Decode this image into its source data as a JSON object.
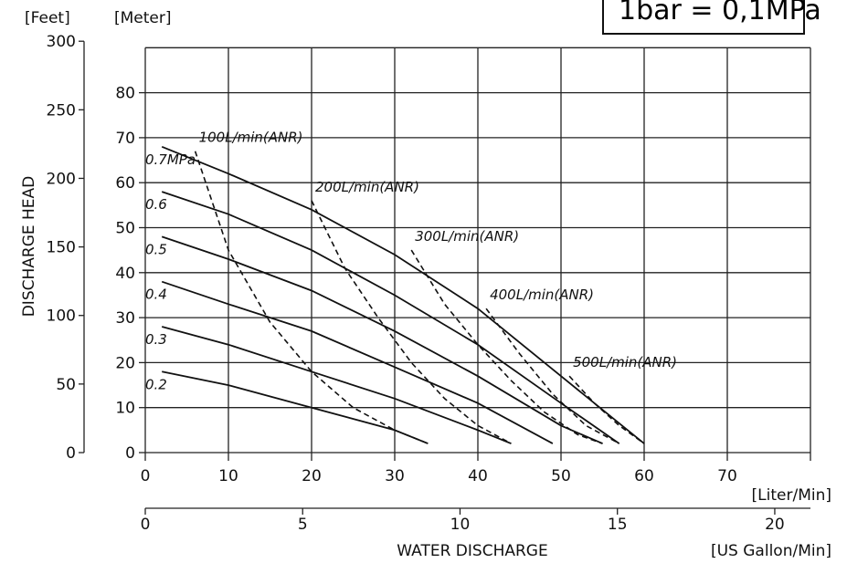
{
  "unit_note": "1bar = 0,1MPa",
  "chart_data": {
    "type": "line",
    "title": "",
    "ylabel": "DISCHARGE HEAD",
    "xlabel": "WATER DISCHARGE",
    "y_left_unit": "[Feet]",
    "y_right_unit": "[Meter]",
    "x_unit_top": "[Liter/Min]",
    "x_unit_bottom": "[US Gallon/Min]",
    "xlim": [
      0,
      80
    ],
    "ylim_meter": [
      0,
      90
    ],
    "x_ticks_liter": [
      "0",
      "10",
      "20",
      "30",
      "40",
      "50",
      "60",
      "70"
    ],
    "x_ticks_gallon": [
      "0",
      "5",
      "10",
      "15",
      "20"
    ],
    "y_ticks_feet": [
      "0",
      "50",
      "100",
      "150",
      "200",
      "250",
      "300"
    ],
    "y_ticks_meter": [
      "0",
      "10",
      "20",
      "30",
      "40",
      "50",
      "60",
      "70",
      "80"
    ],
    "grid": true,
    "pressure_series": [
      {
        "name": "0.7MPa",
        "x": [
          2,
          10,
          20,
          30,
          40,
          50,
          60
        ],
        "y": [
          68,
          62,
          54,
          44,
          32,
          17,
          2
        ]
      },
      {
        "name": "0.6",
        "x": [
          2,
          10,
          20,
          30,
          40,
          50,
          57
        ],
        "y": [
          58,
          53,
          45,
          35,
          24,
          11,
          2
        ]
      },
      {
        "name": "0.5",
        "x": [
          2,
          10,
          20,
          30,
          40,
          50,
          55
        ],
        "y": [
          48,
          43,
          36,
          27,
          17,
          6,
          2
        ]
      },
      {
        "name": "0.4",
        "x": [
          2,
          10,
          20,
          30,
          40,
          49
        ],
        "y": [
          38,
          33,
          27,
          19,
          11,
          2
        ]
      },
      {
        "name": "0.3",
        "x": [
          2,
          10,
          20,
          30,
          40,
          44
        ],
        "y": [
          28,
          24,
          18,
          12,
          5,
          2
        ]
      },
      {
        "name": "0.2",
        "x": [
          2,
          10,
          20,
          30,
          34
        ],
        "y": [
          18,
          15,
          10,
          5,
          2
        ]
      }
    ],
    "air_consumption_series": [
      {
        "name": "100L/min(ANR)",
        "x": [
          6,
          10,
          15,
          20,
          25,
          30,
          34
        ],
        "y": [
          67,
          45,
          29,
          18,
          10,
          5,
          2
        ]
      },
      {
        "name": "200L/min(ANR)",
        "x": [
          20,
          24,
          28,
          32,
          36,
          40,
          44
        ],
        "y": [
          56,
          41,
          30,
          20,
          12,
          6,
          2
        ]
      },
      {
        "name": "300L/min(ANR)",
        "x": [
          32,
          36,
          40,
          44,
          48,
          52,
          55
        ],
        "y": [
          45,
          33,
          24,
          16,
          9,
          4,
          2
        ]
      },
      {
        "name": "400L/min(ANR)",
        "x": [
          41,
          45,
          49,
          53,
          57
        ],
        "y": [
          32,
          22,
          13,
          6,
          2
        ]
      },
      {
        "name": "500L/min(ANR)",
        "x": [
          51,
          54,
          57,
          60
        ],
        "y": [
          17,
          11,
          6,
          2
        ]
      }
    ]
  }
}
